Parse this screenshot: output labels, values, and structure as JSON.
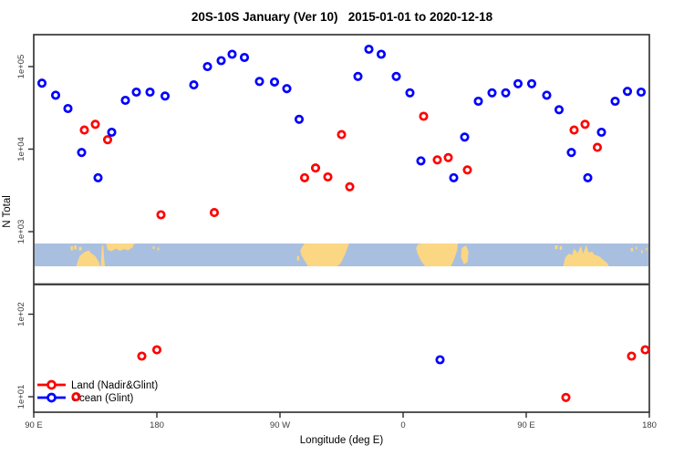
{
  "title": "20S-10S January (Ver 10)   2015-01-01 to 2020-12-18",
  "chart_data": {
    "type": "scatter",
    "title": "20S-10S January (Ver 10)   2015-01-01 to 2020-12-18",
    "xlabel": "Longitude (deg E)",
    "ylabel": "N Total",
    "y_scale": "log",
    "x_range_deg": [
      90,
      540
    ],
    "y_range": [
      6,
      300000
    ],
    "grid": false,
    "x_ticks": [
      {
        "label": "90 E",
        "lon": 90
      },
      {
        "label": "180",
        "lon": 180
      },
      {
        "label": "90 W",
        "lon": 270
      },
      {
        "label": "0",
        "lon": 360
      },
      {
        "label": "90 E",
        "lon": 450
      },
      {
        "label": "180",
        "lon": 540
      }
    ],
    "y_ticks": [
      {
        "label": "1e+01",
        "value": 10
      },
      {
        "label": "1e+02",
        "value": 100
      },
      {
        "label": "1e+03",
        "value": 1000
      },
      {
        "label": "1e+04",
        "value": 10000
      },
      {
        "label": "1e+05",
        "value": 100000
      }
    ],
    "separator_value": 230,
    "legend": {
      "position": "bottom-left",
      "entries": [
        {
          "label": "Land (Nadir&Glint)",
          "color": "#ff0000"
        },
        {
          "label": "Ocean (Glint)",
          "color": "#0000ff"
        }
      ]
    },
    "series": [
      {
        "name": "Land (Nadir&Glint)",
        "color": "#ff0000",
        "points": [
          [
            121,
            10
          ],
          [
            127,
            17000
          ],
          [
            135,
            20000
          ],
          [
            144,
            13000
          ],
          [
            169,
            31
          ],
          [
            180,
            37
          ],
          [
            183,
            1600
          ],
          [
            222,
            1700
          ],
          [
            288,
            4500
          ],
          [
            296,
            5900
          ],
          [
            305,
            4600
          ],
          [
            315,
            15000
          ],
          [
            321,
            3500
          ],
          [
            375,
            25000
          ],
          [
            385,
            7400
          ],
          [
            393,
            7900
          ],
          [
            407,
            5600
          ],
          [
            479,
            9.8
          ],
          [
            485,
            17000
          ],
          [
            493,
            20000
          ],
          [
            502,
            10500
          ],
          [
            527,
            31
          ],
          [
            537,
            37
          ]
        ]
      },
      {
        "name": "Ocean (Glint)",
        "color": "#0000ff",
        "points": [
          [
            96,
            63000
          ],
          [
            106,
            45000
          ],
          [
            115,
            31000
          ],
          [
            125,
            9100
          ],
          [
            137,
            4500
          ],
          [
            147,
            16000
          ],
          [
            157,
            39000
          ],
          [
            165,
            49000
          ],
          [
            175,
            49000
          ],
          [
            186,
            44000
          ],
          [
            207,
            60000
          ],
          [
            217,
            100000
          ],
          [
            227,
            118000
          ],
          [
            235,
            141000
          ],
          [
            244,
            129000
          ],
          [
            255,
            66000
          ],
          [
            266,
            65000
          ],
          [
            275,
            54000
          ],
          [
            284,
            23000
          ],
          [
            327,
            76000
          ],
          [
            335,
            162000
          ],
          [
            344,
            141000
          ],
          [
            355,
            76000
          ],
          [
            365,
            48000
          ],
          [
            373,
            7200
          ],
          [
            387,
            28
          ],
          [
            397,
            4500
          ],
          [
            405,
            14000
          ],
          [
            415,
            38000
          ],
          [
            425,
            48000
          ],
          [
            435,
            48000
          ],
          [
            444,
            62000
          ],
          [
            454,
            62000
          ],
          [
            465,
            45000
          ],
          [
            474,
            30000
          ],
          [
            483,
            9100
          ],
          [
            495,
            4500
          ],
          [
            505,
            16000
          ],
          [
            515,
            38000
          ],
          [
            524,
            50000
          ],
          [
            534,
            49000
          ]
        ]
      }
    ],
    "map_strip": {
      "description": "land-ocean map band for latitude 20S-10S drawn across plot",
      "ocean_color": "#a9bfdf",
      "land_color": "#fbd683",
      "polygons": [
        [
          [
            121,
            1
          ],
          [
            123.5,
            0.55
          ],
          [
            127,
            0.38
          ],
          [
            130,
            0.3
          ],
          [
            132.5,
            0.45
          ],
          [
            135,
            0.55
          ],
          [
            137.5,
            0.8
          ],
          [
            138.5,
            1
          ]
        ],
        [
          [
            139,
            1
          ],
          [
            139.8,
            0.15
          ],
          [
            140.8,
            0.05
          ],
          [
            141.3,
            0.55
          ],
          [
            142,
            1
          ]
        ],
        [
          [
            143,
            0
          ],
          [
            144,
            0.28
          ],
          [
            147,
            0.34
          ],
          [
            150,
            0.22
          ],
          [
            153,
            0.32
          ],
          [
            156,
            0.25
          ],
          [
            159,
            0.3
          ],
          [
            162,
            0.18
          ],
          [
            163.5,
            0
          ]
        ],
        [
          [
            288,
            0
          ],
          [
            320.5,
            0
          ],
          [
            319,
            0.25
          ],
          [
            317,
            0.55
          ],
          [
            314.5,
            0.85
          ],
          [
            312,
            1
          ],
          [
            290.5,
            1
          ],
          [
            288,
            0.75
          ],
          [
            285.5,
            0.5
          ],
          [
            284.8,
            0.3
          ],
          [
            286.5,
            0.12
          ]
        ],
        [
          [
            370.7,
            0.05
          ],
          [
            373,
            0
          ],
          [
            400,
            0
          ],
          [
            399.5,
            0.3
          ],
          [
            397.5,
            0.65
          ],
          [
            395,
            1
          ],
          [
            376,
            1
          ],
          [
            373,
            0.75
          ],
          [
            370.5,
            0.45
          ],
          [
            369.5,
            0.2
          ]
        ],
        [
          [
            402.8,
            0.2
          ],
          [
            406,
            0.08
          ],
          [
            407.8,
            0.35
          ],
          [
            407.2,
            0.8
          ],
          [
            404.5,
            0.92
          ],
          [
            402.3,
            0.6
          ]
        ],
        [
          [
            477,
            1
          ],
          [
            478.5,
            0.62
          ],
          [
            481,
            0.45
          ],
          [
            483.5,
            0.5
          ],
          [
            485,
            0.22
          ],
          [
            487.5,
            0.42
          ],
          [
            490,
            0.1
          ],
          [
            491.5,
            0.45
          ],
          [
            494,
            0.05
          ],
          [
            495.5,
            0.4
          ],
          [
            498,
            0.35
          ],
          [
            500,
            0.5
          ],
          [
            503,
            0.55
          ],
          [
            506,
            0.7
          ],
          [
            509,
            0.85
          ],
          [
            510.5,
            1
          ]
        ]
      ],
      "islets": [
        {
          "lon0": 117,
          "lon1": 118.7,
          "f0": 0.12,
          "f1": 0.3
        },
        {
          "lon0": 119.5,
          "lon1": 121.3,
          "f0": 0.08,
          "f1": 0.26
        },
        {
          "lon0": 123,
          "lon1": 125,
          "f0": 0.15,
          "f1": 0.3
        },
        {
          "lon0": 177,
          "lon1": 178.3,
          "f0": 0.12,
          "f1": 0.24
        },
        {
          "lon0": 180.5,
          "lon1": 181.6,
          "f0": 0.18,
          "f1": 0.3
        },
        {
          "lon0": 282.5,
          "lon1": 284,
          "f0": 0.55,
          "f1": 0.75
        },
        {
          "lon0": 300.5,
          "lon1": 301.3,
          "f0": 0.85,
          "f1": 1
        },
        {
          "lon0": 471,
          "lon1": 473,
          "f0": 0.08,
          "f1": 0.25
        },
        {
          "lon0": 474.5,
          "lon1": 476,
          "f0": 0.12,
          "f1": 0.28
        },
        {
          "lon0": 526.5,
          "lon1": 528,
          "f0": 0.2,
          "f1": 0.35
        },
        {
          "lon0": 530,
          "lon1": 531,
          "f0": 0.15,
          "f1": 0.25
        },
        {
          "lon0": 534,
          "lon1": 535.2,
          "f0": 0.3,
          "f1": 0.42
        },
        {
          "lon0": 537.5,
          "lon1": 538.5,
          "f0": 0.2,
          "f1": 0.3
        }
      ]
    },
    "style": {
      "border_color": "#2b2b2b",
      "separator_line_color": "#3a3a3a",
      "point_radius": 3.7,
      "point_stroke_width": 2.7
    }
  }
}
